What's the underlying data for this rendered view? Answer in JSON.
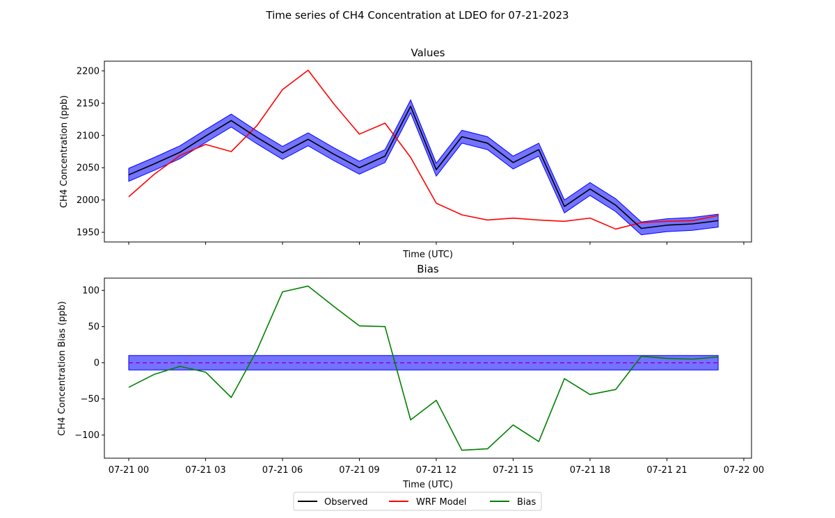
{
  "figure": {
    "title": "Time series of CH4 Concentration at LDEO for 07-21-2023"
  },
  "colors": {
    "observed": "#000000",
    "model": "#ff0000",
    "bias": "#008000",
    "band": "#0000ff",
    "zero_line": "#9400d3"
  },
  "legend": {
    "observed": "Observed",
    "model": "WRF Model",
    "bias": "Bias"
  },
  "chart_data": [
    {
      "type": "line",
      "title": "Values",
      "xlabel": "Time (UTC)",
      "ylabel": "CH4 Concentration (ppb)",
      "x": [
        "00:00",
        "01:00",
        "02:00",
        "03:00",
        "04:00",
        "05:00",
        "06:00",
        "07:00",
        "08:00",
        "09:00",
        "10:00",
        "11:00",
        "12:00",
        "13:00",
        "14:00",
        "15:00",
        "16:00",
        "17:00",
        "18:00",
        "19:00",
        "20:00",
        "21:00",
        "22:00",
        "23:00"
      ],
      "series": [
        {
          "name": "Observed",
          "values": [
            2039,
            2056,
            2074,
            2099,
            2123,
            2097,
            2073,
            2094,
            2071,
            2050,
            2068,
            2145,
            2047,
            2098,
            2088,
            2058,
            2078,
            1990,
            2017,
            1992,
            1956,
            1961,
            1963,
            1968
          ],
          "band": 10
        },
        {
          "name": "WRF Model",
          "values": [
            2005,
            2040,
            2069,
            2086,
            2075,
            2115,
            2171,
            2201,
            2149,
            2102,
            2119,
            2066,
            1995,
            1977,
            1969,
            1972,
            1969,
            1967,
            1972,
            1955,
            1965,
            1967,
            1968,
            1976
          ]
        }
      ],
      "ylim": [
        1935,
        2215
      ],
      "yticks": [
        1950,
        2000,
        2050,
        2100,
        2150,
        2200
      ],
      "xticks_hours": [
        0,
        3,
        6,
        9,
        12,
        15,
        18,
        21,
        24
      ],
      "xtick_labels": [],
      "grid": false
    },
    {
      "type": "line",
      "title": "Bias",
      "xlabel": "Time (UTC)",
      "ylabel": "CH4 Concentration Bias (ppb)",
      "x": [
        "00:00",
        "01:00",
        "02:00",
        "03:00",
        "04:00",
        "05:00",
        "06:00",
        "07:00",
        "08:00",
        "09:00",
        "10:00",
        "11:00",
        "12:00",
        "13:00",
        "14:00",
        "15:00",
        "16:00",
        "17:00",
        "18:00",
        "19:00",
        "20:00",
        "21:00",
        "22:00",
        "23:00"
      ],
      "series": [
        {
          "name": "Bias",
          "values": [
            -34,
            -16,
            -5,
            -13,
            -48,
            17,
            98,
            106,
            78,
            51,
            50,
            -79,
            -52,
            -121,
            -119,
            -86,
            -109,
            -22,
            -44,
            -37,
            9,
            6,
            5,
            8
          ]
        }
      ],
      "zero_line": 0,
      "band": 10,
      "ylim": [
        -132,
        117
      ],
      "yticks": [
        -100,
        -50,
        0,
        50,
        100
      ],
      "xticks_hours": [
        0,
        3,
        6,
        9,
        12,
        15,
        18,
        21,
        24
      ],
      "xtick_labels": [
        "07-21 00",
        "07-21 03",
        "07-21 06",
        "07-21 09",
        "07-21 12",
        "07-21 15",
        "07-21 18",
        "07-21 21",
        "07-22 00"
      ],
      "grid": false
    }
  ]
}
